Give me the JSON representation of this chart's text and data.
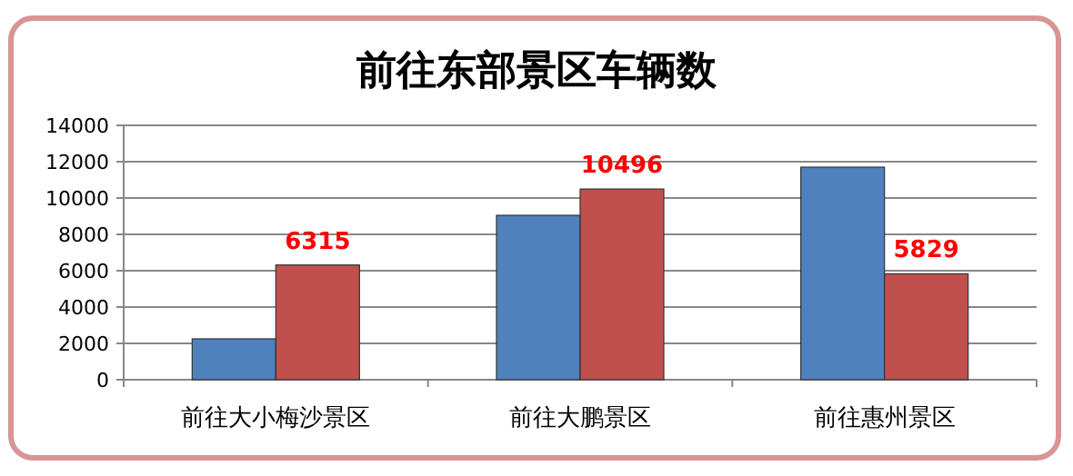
{
  "chart_data": {
    "type": "bar",
    "title": "前往东部景区车辆数",
    "categories": [
      "前往大小梅沙景区",
      "前往大鹏景区",
      "前往惠州景区"
    ],
    "series": [
      {
        "color": "#4f81bd",
        "values": [
          2250,
          9050,
          11700
        ]
      },
      {
        "color": "#c0504d",
        "values": [
          6315,
          10496,
          5829
        ],
        "value_labels": [
          "6315",
          "10496",
          "5829"
        ]
      }
    ],
    "ylim": [
      0,
      14000
    ],
    "yticks": [
      0,
      2000,
      4000,
      6000,
      8000,
      10000,
      12000,
      14000
    ],
    "grid": "y"
  }
}
